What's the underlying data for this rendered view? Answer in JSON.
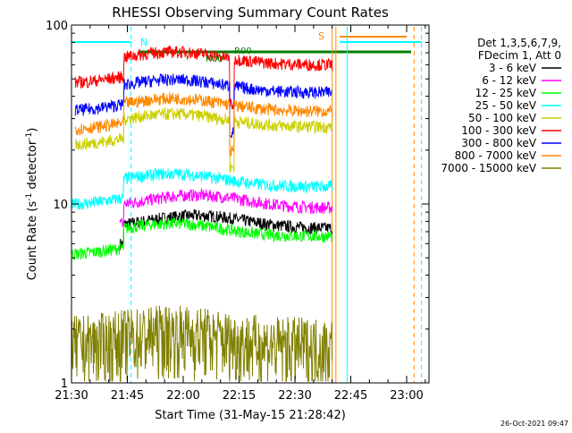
{
  "chart_data": {
    "type": "line",
    "title": "RHESSI Observing Summary Count Rates",
    "xlabel": "Start Time (31-May-15 21:28:42)",
    "ylabel_main": "Count Rate (s",
    "ylabel_sup1": "-1",
    "ylabel_mid": " detector",
    "ylabel_sup2": "-1",
    "ylabel_end": ")",
    "yscale": "log",
    "ylim": [
      1,
      100
    ],
    "xlim_minutes": [
      21.5,
      23.1
    ],
    "y_tick_labels": [
      "1",
      "10",
      "100"
    ],
    "x_tick_labels": [
      "21:30",
      "21:45",
      "22:00",
      "22:15",
      "22:30",
      "22:45",
      "23:00"
    ],
    "legend_header": [
      "Det 1,3,5,6,7,9,",
      "FDecim 1, Att 0"
    ],
    "timestamp": "26-Oct-2021 09:47",
    "annotations": {
      "night_start": "N",
      "saa_start": "S",
      "flag_a": "R00",
      "flag_b": "R00"
    },
    "series": [
      {
        "name": "3 - 6 keV",
        "color": "#000000",
        "start": "21:43",
        "end": "22:40",
        "level": 7.3
      },
      {
        "name": "6 - 12 keV",
        "color": "#ff00ff",
        "start": "21:43",
        "end": "22:40",
        "level": 9.5
      },
      {
        "name": "12 - 25 keV",
        "color": "#00ff00",
        "start": "21:30",
        "end": "22:40",
        "level": 6.6
      },
      {
        "name": "25 - 50 keV",
        "color": "#00ffff",
        "start": "21:30",
        "end": "22:40",
        "level": 12.5
      },
      {
        "name": "50 - 100 keV",
        "color": "#ccd000",
        "start": "21:31",
        "end": "22:40",
        "level": 27
      },
      {
        "name": "100 - 300 keV",
        "color": "#ff0000",
        "start": "21:31",
        "end": "22:40",
        "level": 60
      },
      {
        "name": "300 - 800 keV",
        "color": "#0000ff",
        "start": "21:31",
        "end": "22:40",
        "level": 42
      },
      {
        "name": "800 - 7000 keV",
        "color": "#ff8800",
        "start": "21:31",
        "end": "22:40",
        "level": 33
      },
      {
        "name": "7000 - 15000 keV",
        "color": "#808000",
        "start": "21:30",
        "end": "22:40",
        "level": 1.6
      }
    ]
  }
}
